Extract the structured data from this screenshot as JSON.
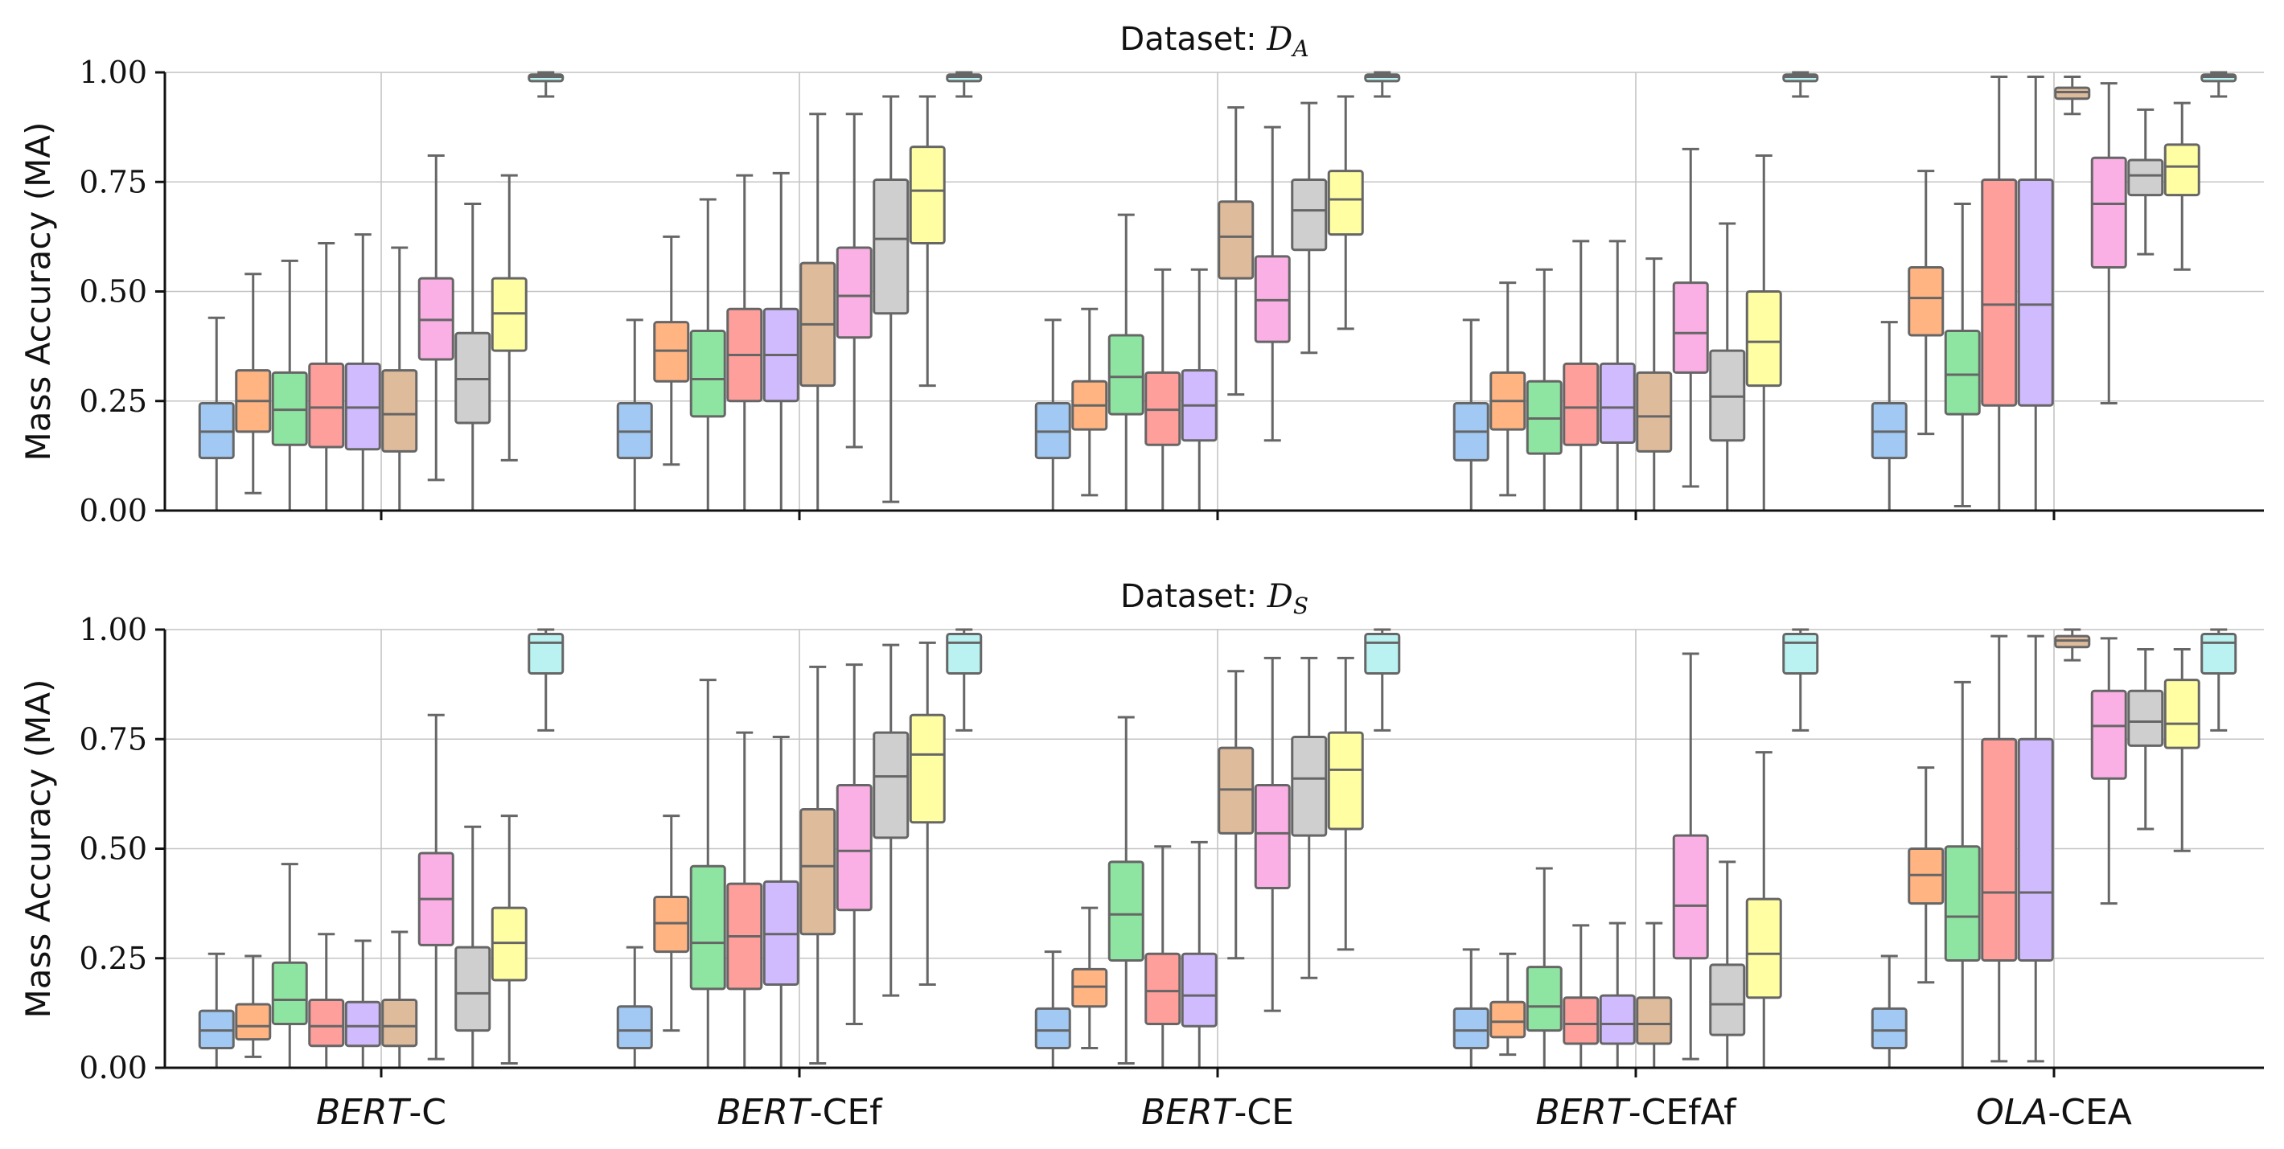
{
  "chart_data": [
    {
      "type": "box",
      "title": "Dataset: ",
      "title_symbol": "D",
      "title_subscript": "A",
      "ylabel": "Mass Accuracy (MA)",
      "ylim": [
        0,
        1
      ],
      "yticks": [
        "0.00",
        "0.25",
        "0.50",
        "0.75",
        "1.00"
      ],
      "categories": [
        {
          "italic": "BERT",
          "rest": "-C"
        },
        {
          "italic": "BERT",
          "rest": "-CEf"
        },
        {
          "italic": "BERT",
          "rest": "-CE"
        },
        {
          "italic": "BERT",
          "rest": "-CEfAf"
        },
        {
          "italic": "OLA",
          "rest": "-CEA"
        }
      ],
      "palette": [
        "#a1c9f4",
        "#ffb482",
        "#8de5a1",
        "#ff9f9b",
        "#d0bbff",
        "#debb9b",
        "#fab0e4",
        "#cfcfcf",
        "#fffea3",
        "#b9f2f0"
      ],
      "groups": [
        [
          [
            0.0,
            0.12,
            0.18,
            0.245,
            0.44
          ],
          [
            0.04,
            0.18,
            0.25,
            0.32,
            0.54
          ],
          [
            0.0,
            0.15,
            0.23,
            0.315,
            0.57
          ],
          [
            0.0,
            0.145,
            0.235,
            0.335,
            0.61
          ],
          [
            0.0,
            0.14,
            0.235,
            0.335,
            0.63
          ],
          [
            0.0,
            0.135,
            0.22,
            0.32,
            0.6
          ],
          [
            0.07,
            0.345,
            0.435,
            0.53,
            0.81
          ],
          [
            0.0,
            0.2,
            0.3,
            0.405,
            0.7
          ],
          [
            0.115,
            0.365,
            0.45,
            0.53,
            0.765
          ],
          [
            0.945,
            0.98,
            0.99,
            0.995,
            1.0
          ]
        ],
        [
          [
            0.0,
            0.12,
            0.18,
            0.245,
            0.435
          ],
          [
            0.105,
            0.295,
            0.365,
            0.43,
            0.625
          ],
          [
            0.0,
            0.215,
            0.3,
            0.41,
            0.71
          ],
          [
            0.0,
            0.25,
            0.355,
            0.46,
            0.765
          ],
          [
            0.0,
            0.25,
            0.355,
            0.46,
            0.77
          ],
          [
            0.0,
            0.285,
            0.425,
            0.565,
            0.905
          ],
          [
            0.145,
            0.395,
            0.49,
            0.6,
            0.905
          ],
          [
            0.02,
            0.45,
            0.62,
            0.755,
            0.945
          ],
          [
            0.285,
            0.61,
            0.73,
            0.83,
            0.945
          ],
          [
            0.945,
            0.98,
            0.99,
            0.995,
            1.0
          ]
        ],
        [
          [
            0.0,
            0.12,
            0.18,
            0.245,
            0.435
          ],
          [
            0.035,
            0.185,
            0.24,
            0.295,
            0.46
          ],
          [
            0.0,
            0.22,
            0.305,
            0.4,
            0.675
          ],
          [
            0.0,
            0.15,
            0.23,
            0.315,
            0.55
          ],
          [
            0.0,
            0.16,
            0.24,
            0.32,
            0.55
          ],
          [
            0.265,
            0.53,
            0.625,
            0.705,
            0.92
          ],
          [
            0.16,
            0.385,
            0.48,
            0.58,
            0.875
          ],
          [
            0.36,
            0.595,
            0.685,
            0.755,
            0.93
          ],
          [
            0.415,
            0.63,
            0.71,
            0.775,
            0.945
          ],
          [
            0.945,
            0.98,
            0.99,
            0.995,
            1.0
          ]
        ],
        [
          [
            0.0,
            0.115,
            0.18,
            0.245,
            0.435
          ],
          [
            0.035,
            0.185,
            0.25,
            0.315,
            0.52
          ],
          [
            0.0,
            0.13,
            0.21,
            0.295,
            0.55
          ],
          [
            0.0,
            0.15,
            0.235,
            0.335,
            0.615
          ],
          [
            0.0,
            0.155,
            0.235,
            0.335,
            0.615
          ],
          [
            0.0,
            0.135,
            0.215,
            0.315,
            0.575
          ],
          [
            0.055,
            0.315,
            0.405,
            0.52,
            0.825
          ],
          [
            0.0,
            0.16,
            0.26,
            0.365,
            0.655
          ],
          [
            0.0,
            0.285,
            0.385,
            0.5,
            0.81
          ],
          [
            0.945,
            0.98,
            0.99,
            0.995,
            1.0
          ]
        ],
        [
          [
            0.0,
            0.12,
            0.18,
            0.245,
            0.43
          ],
          [
            0.175,
            0.4,
            0.485,
            0.555,
            0.775
          ],
          [
            0.01,
            0.22,
            0.31,
            0.41,
            0.7
          ],
          [
            0.0,
            0.24,
            0.47,
            0.755,
            0.99
          ],
          [
            0.0,
            0.24,
            0.47,
            0.755,
            0.99
          ],
          [
            0.905,
            0.94,
            0.955,
            0.965,
            0.99
          ],
          [
            0.245,
            0.555,
            0.7,
            0.805,
            0.975
          ],
          [
            0.585,
            0.72,
            0.765,
            0.8,
            0.915
          ],
          [
            0.55,
            0.72,
            0.785,
            0.835,
            0.93
          ],
          [
            0.945,
            0.98,
            0.99,
            0.995,
            1.0
          ]
        ]
      ]
    },
    {
      "type": "box",
      "title": "Dataset: ",
      "title_symbol": "D",
      "title_subscript": "S",
      "ylabel": "Mass Accuracy (MA)",
      "ylim": [
        0,
        1
      ],
      "yticks": [
        "0.00",
        "0.25",
        "0.50",
        "0.75",
        "1.00"
      ],
      "categories": [
        {
          "italic": "BERT",
          "rest": "-C"
        },
        {
          "italic": "BERT",
          "rest": "-CEf"
        },
        {
          "italic": "BERT",
          "rest": "-CE"
        },
        {
          "italic": "BERT",
          "rest": "-CEfAf"
        },
        {
          "italic": "OLA",
          "rest": "-CEA"
        }
      ],
      "palette": [
        "#a1c9f4",
        "#ffb482",
        "#8de5a1",
        "#ff9f9b",
        "#d0bbff",
        "#debb9b",
        "#fab0e4",
        "#cfcfcf",
        "#fffea3",
        "#b9f2f0"
      ],
      "groups": [
        [
          [
            0.0,
            0.045,
            0.085,
            0.13,
            0.26
          ],
          [
            0.025,
            0.065,
            0.095,
            0.145,
            0.255
          ],
          [
            0.0,
            0.1,
            0.155,
            0.24,
            0.465
          ],
          [
            0.0,
            0.05,
            0.095,
            0.155,
            0.305
          ],
          [
            0.0,
            0.05,
            0.095,
            0.15,
            0.29
          ],
          [
            0.0,
            0.05,
            0.095,
            0.155,
            0.31
          ],
          [
            0.02,
            0.28,
            0.385,
            0.49,
            0.805
          ],
          [
            0.0,
            0.085,
            0.17,
            0.275,
            0.55
          ],
          [
            0.01,
            0.2,
            0.285,
            0.365,
            0.575
          ],
          [
            0.77,
            0.9,
            0.97,
            0.99,
            1.0
          ]
        ],
        [
          [
            0.0,
            0.045,
            0.085,
            0.14,
            0.275
          ],
          [
            0.085,
            0.265,
            0.33,
            0.39,
            0.575
          ],
          [
            0.0,
            0.18,
            0.285,
            0.46,
            0.885
          ],
          [
            0.0,
            0.18,
            0.3,
            0.42,
            0.765
          ],
          [
            0.0,
            0.19,
            0.305,
            0.425,
            0.755
          ],
          [
            0.01,
            0.305,
            0.46,
            0.59,
            0.915
          ],
          [
            0.1,
            0.36,
            0.495,
            0.645,
            0.92
          ],
          [
            0.165,
            0.525,
            0.665,
            0.765,
            0.965
          ],
          [
            0.19,
            0.56,
            0.715,
            0.805,
            0.97
          ],
          [
            0.77,
            0.9,
            0.97,
            0.99,
            1.0
          ]
        ],
        [
          [
            0.0,
            0.045,
            0.085,
            0.135,
            0.265
          ],
          [
            0.045,
            0.14,
            0.185,
            0.225,
            0.365
          ],
          [
            0.01,
            0.245,
            0.35,
            0.47,
            0.8
          ],
          [
            0.0,
            0.1,
            0.175,
            0.26,
            0.505
          ],
          [
            0.0,
            0.095,
            0.165,
            0.26,
            0.515
          ],
          [
            0.25,
            0.535,
            0.635,
            0.73,
            0.905
          ],
          [
            0.13,
            0.41,
            0.535,
            0.645,
            0.935
          ],
          [
            0.205,
            0.53,
            0.66,
            0.755,
            0.935
          ],
          [
            0.27,
            0.545,
            0.68,
            0.765,
            0.935
          ],
          [
            0.77,
            0.9,
            0.97,
            0.99,
            1.0
          ]
        ],
        [
          [
            0.0,
            0.045,
            0.085,
            0.135,
            0.27
          ],
          [
            0.03,
            0.07,
            0.105,
            0.15,
            0.26
          ],
          [
            0.0,
            0.085,
            0.14,
            0.23,
            0.455
          ],
          [
            0.0,
            0.055,
            0.1,
            0.16,
            0.325
          ],
          [
            0.0,
            0.055,
            0.1,
            0.165,
            0.33
          ],
          [
            0.0,
            0.055,
            0.1,
            0.16,
            0.33
          ],
          [
            0.02,
            0.25,
            0.37,
            0.53,
            0.945
          ],
          [
            0.0,
            0.075,
            0.145,
            0.235,
            0.47
          ],
          [
            0.0,
            0.16,
            0.26,
            0.385,
            0.72
          ],
          [
            0.77,
            0.9,
            0.97,
            0.99,
            1.0
          ]
        ],
        [
          [
            0.0,
            0.045,
            0.085,
            0.135,
            0.255
          ],
          [
            0.195,
            0.375,
            0.44,
            0.5,
            0.685
          ],
          [
            0.0,
            0.245,
            0.345,
            0.505,
            0.88
          ],
          [
            0.015,
            0.245,
            0.4,
            0.75,
            0.985
          ],
          [
            0.015,
            0.245,
            0.4,
            0.75,
            0.985
          ],
          [
            0.93,
            0.96,
            0.975,
            0.985,
            1.0
          ],
          [
            0.375,
            0.66,
            0.78,
            0.86,
            0.98
          ],
          [
            0.545,
            0.735,
            0.79,
            0.86,
            0.955
          ],
          [
            0.495,
            0.73,
            0.785,
            0.885,
            0.955
          ],
          [
            0.77,
            0.9,
            0.97,
            0.99,
            1.0
          ]
        ]
      ]
    }
  ]
}
